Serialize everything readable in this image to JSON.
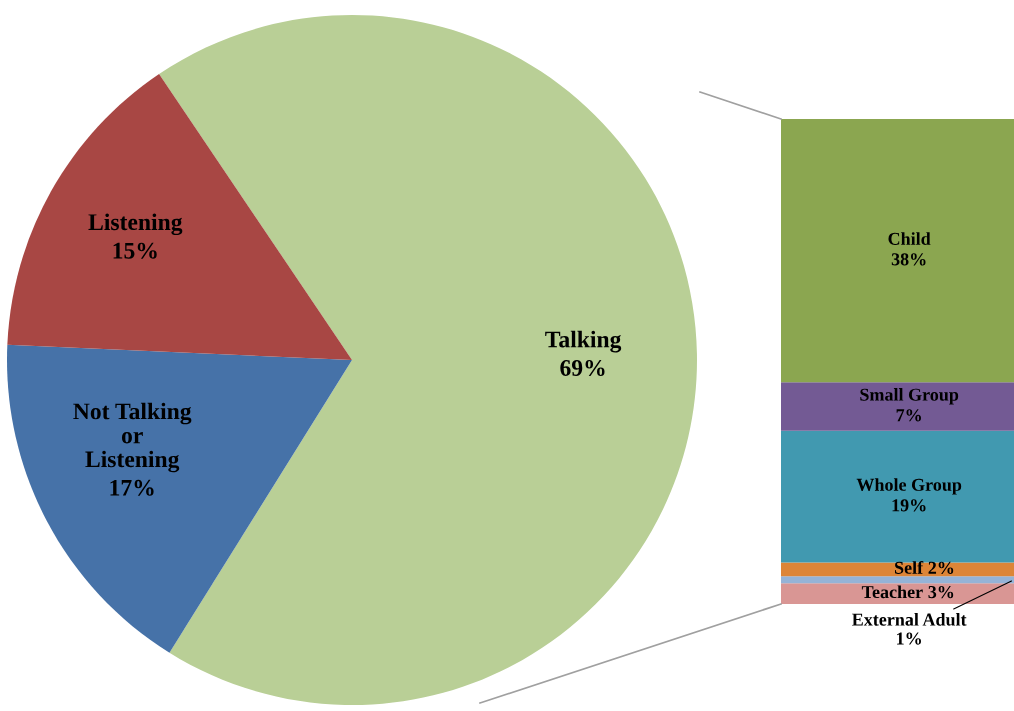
{
  "chart_data": [
    {
      "type": "pie",
      "categories": [
        "Talking",
        "Not Talking or Listening",
        "Listening"
      ],
      "values": [
        69,
        17,
        15
      ],
      "value_labels": [
        "69%",
        "17%",
        "15%"
      ],
      "colors": [
        "#b9cf96",
        "#4672a8",
        "#a84744"
      ]
    },
    {
      "type": "bar",
      "stacked": true,
      "categories": [
        null
      ],
      "series": [
        {
          "name": "Teacher",
          "color": "#d99694",
          "values": [
            3
          ],
          "value_labels": [
            "3%"
          ]
        },
        {
          "name": "External Adult",
          "color": "#95b3d7",
          "values": [
            1
          ],
          "value_labels": [
            "1%"
          ]
        },
        {
          "name": "Self",
          "color": "#dd8537",
          "values": [
            2
          ],
          "value_labels": [
            "2%"
          ]
        },
        {
          "name": "Whole Group",
          "color": "#4199b0",
          "values": [
            19
          ],
          "value_labels": [
            "19%"
          ]
        },
        {
          "name": "Small Group",
          "color": "#735a94",
          "values": [
            7
          ],
          "value_labels": [
            "7%"
          ]
        },
        {
          "name": "Child",
          "color": "#8ba650",
          "values": [
            38
          ],
          "value_labels": [
            "38%"
          ]
        }
      ]
    }
  ]
}
